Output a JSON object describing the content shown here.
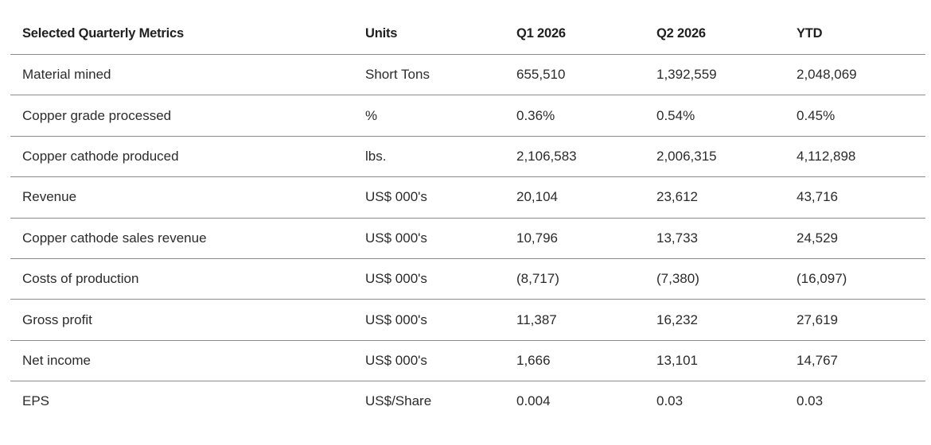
{
  "table": {
    "headers": [
      "Selected Quarterly Metrics",
      "Units",
      "Q1 2026",
      "Q2 2026",
      "YTD"
    ],
    "rows": [
      [
        "Material mined",
        "Short Tons",
        "655,510",
        "1,392,559",
        "2,048,069"
      ],
      [
        "Copper grade processed",
        "%",
        "0.36%",
        "0.54%",
        "0.45%"
      ],
      [
        "Copper cathode produced",
        "lbs.",
        "2,106,583",
        "2,006,315",
        "4,112,898"
      ],
      [
        "Revenue",
        "US$ 000's",
        "20,104",
        "23,612",
        "43,716"
      ],
      [
        "Copper cathode sales revenue",
        "US$ 000's",
        "10,796",
        "13,733",
        "24,529"
      ],
      [
        "Costs of production",
        "US$ 000's",
        "(8,717)",
        "(7,380)",
        "(16,097)"
      ],
      [
        "Gross profit",
        "US$ 000's",
        "11,387",
        "16,232",
        "27,619"
      ],
      [
        "Net income",
        "US$ 000's",
        "1,666",
        "13,101",
        "14,767"
      ],
      [
        "EPS",
        "US$/Share",
        "0.004",
        "0.03",
        "0.03"
      ]
    ]
  },
  "colors": {
    "text": "#2b2b2b",
    "rule": "#8c8c8c",
    "background": "#ffffff"
  }
}
